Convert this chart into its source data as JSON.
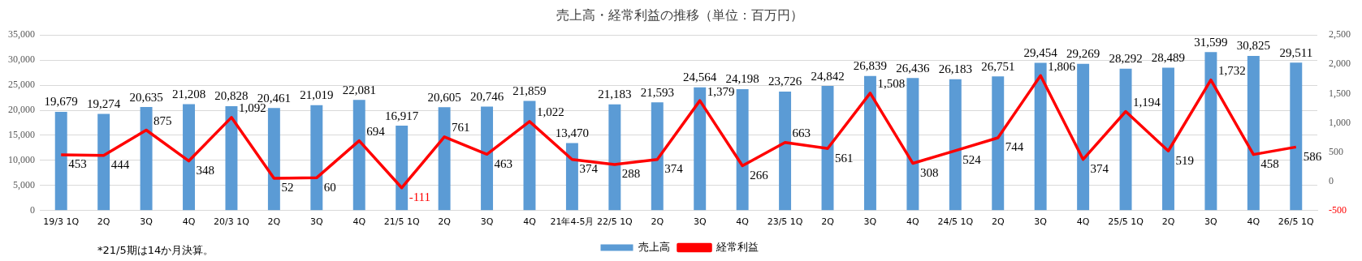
{
  "chart_data": {
    "type": "bar",
    "title": "売上高・経常利益の推移（単位：百万円）",
    "categories": [
      "19/3 1Q",
      "2Q",
      "3Q",
      "4Q",
      "20/3 1Q",
      "2Q",
      "3Q",
      "4Q",
      "21/5 1Q",
      "2Q",
      "3Q",
      "4Q",
      "21年4-5月",
      "22/5 1Q",
      "2Q",
      "3Q",
      "4Q",
      "23/5 1Q",
      "2Q",
      "3Q",
      "4Q",
      "24/5 1Q",
      "2Q",
      "3Q",
      "4Q",
      "25/5 1Q",
      "2Q",
      "3Q",
      "4Q",
      "26/5 1Q"
    ],
    "series": [
      {
        "name": "売上高",
        "color": "#5b9bd5",
        "values": [
          19679,
          19274,
          20635,
          21208,
          20828,
          20461,
          21019,
          22081,
          16917,
          20605,
          20746,
          21859,
          13470,
          21183,
          21593,
          24564,
          24198,
          23726,
          24842,
          26839,
          26436,
          26183,
          26751,
          29454,
          29269,
          28292,
          28489,
          31599,
          30825,
          29511
        ],
        "value_labels": [
          "19,679",
          "19,274",
          "20,635",
          "21,208",
          "20,828",
          "20,461",
          "21,019",
          "22,081",
          "16,917",
          "20,605",
          "20,746",
          "21,859",
          "13,470",
          "21,183",
          "21,593",
          "24,564",
          "24,198",
          "23,726",
          "24,842",
          "26,839",
          "26,436",
          "26,183",
          "26,751",
          "29,454",
          "29,269",
          "28,292",
          "28,489",
          "31,599",
          "30,825",
          "29,511"
        ]
      },
      {
        "name": "経常利益",
        "type": "line",
        "axis": "y2",
        "color": "#ff0000",
        "values": [
          453,
          444,
          875,
          348,
          1092,
          52,
          60,
          694,
          -111,
          761,
          463,
          1022,
          374,
          288,
          374,
          1379,
          266,
          663,
          561,
          1508,
          308,
          524,
          744,
          1806,
          374,
          1194,
          519,
          1732,
          458,
          586
        ],
        "value_labels": [
          "453",
          "444",
          "875",
          "348",
          "1,092",
          "52",
          "60",
          "694",
          "-111",
          "761",
          "463",
          "1,022",
          "374",
          "288",
          "374",
          "1,379",
          "266",
          "663",
          "561",
          "1,508",
          "308",
          "524",
          "744",
          "1,806",
          "374",
          "1,194",
          "519",
          "1,732",
          "458",
          "586"
        ]
      }
    ],
    "ylim": [
      0,
      35000
    ],
    "yticks": [
      0,
      {
        "value": 5000,
        "label": "5,000"
      },
      {
        "value": 10000,
        "label": "10,000"
      },
      {
        "value": 15000,
        "label": "15,000"
      },
      {
        "value": 20000,
        "label": "20,000"
      },
      {
        "value": 25000,
        "label": "25,000"
      },
      {
        "value": 30000,
        "label": "30,000"
      },
      {
        "value": 35000,
        "label": "35,000"
      }
    ],
    "y2lim": [
      -500,
      2500
    ],
    "y2ticks": [
      {
        "value": -500,
        "label": "-500"
      },
      0,
      500,
      {
        "value": 1000,
        "label": "1,000"
      },
      {
        "value": 1500,
        "label": "1,500"
      },
      {
        "value": 2000,
        "label": "2,000"
      },
      {
        "value": 2500,
        "label": "2,500"
      }
    ],
    "grid": "y",
    "legend": "bottom",
    "marker": "none",
    "line_style": "solid",
    "annotations": [
      "*21/5期は14か月決算。"
    ]
  }
}
